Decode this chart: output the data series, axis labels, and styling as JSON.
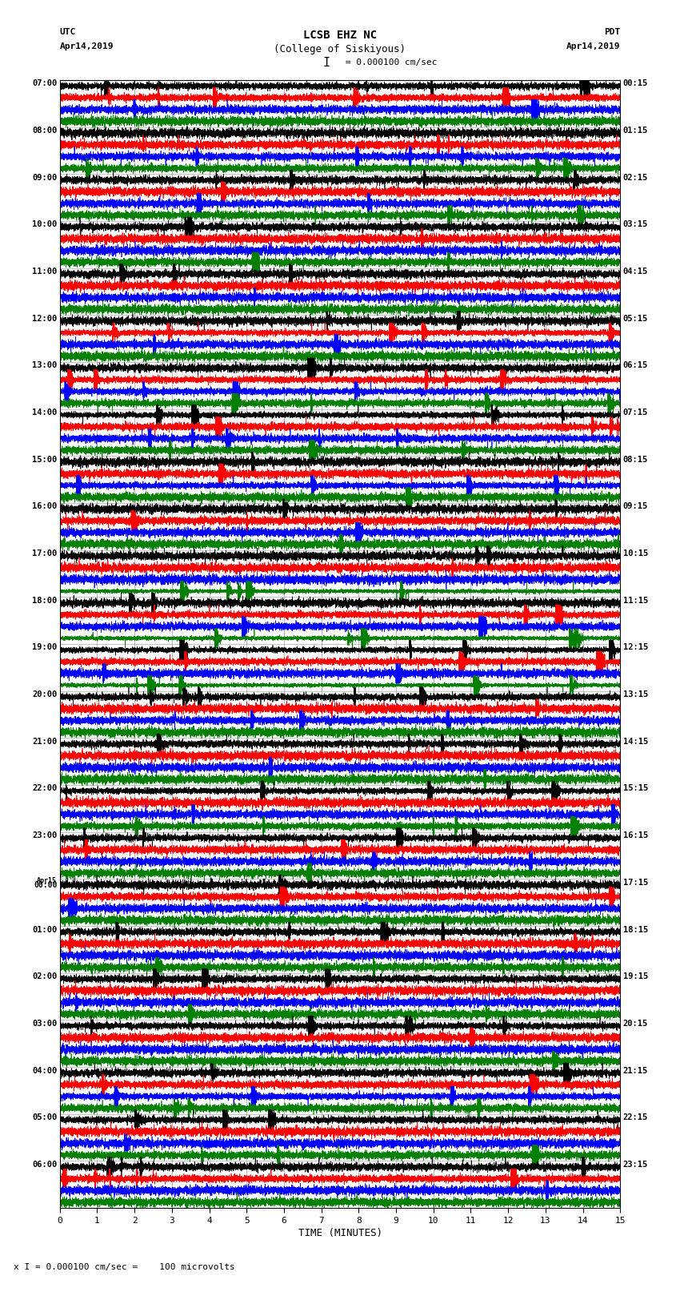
{
  "title_line1": "LCSB EHZ NC",
  "title_line2": "(College of Siskiyous)",
  "left_label_top": "UTC",
  "left_label_date": "Apr14,2019",
  "right_label_top": "PDT",
  "right_label_date": "Apr14,2019",
  "scale_label": "I = 0.000100 cm/sec",
  "footer_label": "x I = 0.000100 cm/sec =    100 microvolts",
  "xlabel": "TIME (MINUTES)",
  "bg_color": "#ffffff",
  "trace_colors": [
    "#000000",
    "#ff0000",
    "#0000ff",
    "#008000"
  ],
  "num_minutes": 15,
  "traces_per_row": 4,
  "utc_labels": [
    "07:00",
    "08:00",
    "09:00",
    "10:00",
    "11:00",
    "12:00",
    "13:00",
    "14:00",
    "15:00",
    "16:00",
    "17:00",
    "18:00",
    "19:00",
    "20:00",
    "21:00",
    "22:00",
    "23:00",
    "Apr15\n00:00",
    "01:00",
    "02:00",
    "03:00",
    "04:00",
    "05:00",
    "06:00"
  ],
  "pdt_labels": [
    "00:15",
    "01:15",
    "02:15",
    "03:15",
    "04:15",
    "05:15",
    "06:15",
    "07:15",
    "08:15",
    "09:15",
    "10:15",
    "11:15",
    "12:15",
    "13:15",
    "14:15",
    "15:15",
    "16:15",
    "17:15",
    "18:15",
    "19:15",
    "20:15",
    "21:15",
    "22:15",
    "23:15"
  ]
}
